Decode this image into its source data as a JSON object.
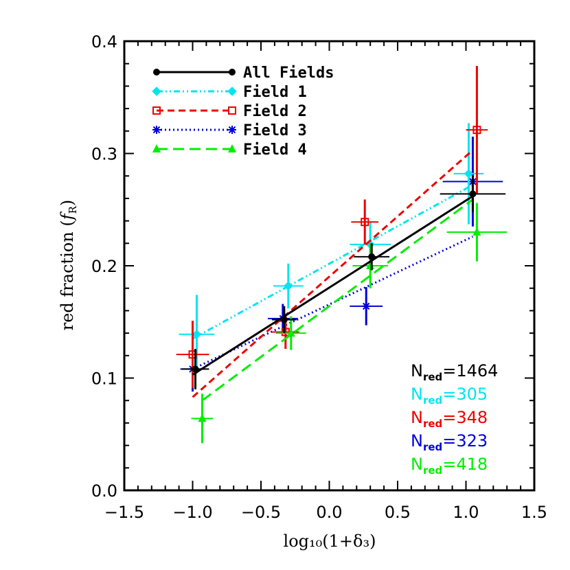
{
  "chart_data": {
    "type": "scatter",
    "xlabel": "log₁₀(1+δ₃)",
    "ylabel": "red fraction (",
    "ylabel_symbol": "f",
    "ylabel_subscript": "R",
    "ylabel_close": ")",
    "xlim": [
      -1.5,
      1.5
    ],
    "ylim": [
      0.0,
      0.4
    ],
    "xticks": [
      -1.5,
      -1.0,
      -0.5,
      0.0,
      0.5,
      1.0,
      1.5
    ],
    "xtick_labels": [
      "−1.5",
      "−1.0",
      "−0.5",
      "0.0",
      "0.5",
      "1.0",
      "1.5"
    ],
    "yticks": [
      0.0,
      0.1,
      0.2,
      0.3,
      0.4
    ],
    "ytick_labels": [
      "0.0",
      "0.1",
      "0.2",
      "0.3",
      "0.4"
    ],
    "grid": false,
    "legend_position": "top-left",
    "series": [
      {
        "name": "All Fields",
        "color": "#000000",
        "marker": "filled-circle",
        "linestyle": "solid",
        "points": [
          {
            "x": -0.98,
            "y": 0.108,
            "xerr": 0.1,
            "yerr": 0.018
          },
          {
            "x": -0.33,
            "y": 0.152,
            "xerr": 0.09,
            "yerr": 0.012
          },
          {
            "x": 0.31,
            "y": 0.208,
            "xerr": 0.13,
            "yerr": 0.012
          },
          {
            "x": 1.05,
            "y": 0.264,
            "xerr": 0.24,
            "yerr": 0.016
          }
        ],
        "fit": [
          [
            -1.0,
            0.103
          ],
          [
            1.05,
            0.262
          ]
        ]
      },
      {
        "name": "Field 1",
        "color": "#00e5ee",
        "marker": "diamond",
        "linestyle": "dash-dot-dot",
        "points": [
          {
            "x": -0.97,
            "y": 0.139,
            "xerr": 0.13,
            "yerr": 0.035
          },
          {
            "x": -0.3,
            "y": 0.182,
            "xerr": 0.11,
            "yerr": 0.02
          },
          {
            "x": 0.3,
            "y": 0.219,
            "xerr": 0.15,
            "yerr": 0.02
          },
          {
            "x": 1.02,
            "y": 0.282,
            "xerr": 0.11,
            "yerr": 0.045
          }
        ],
        "fit": [
          [
            -1.0,
            0.135
          ],
          [
            1.05,
            0.272
          ]
        ]
      },
      {
        "name": "Field 2",
        "color": "#ee0000",
        "marker": "open-square",
        "linestyle": "dashed",
        "points": [
          {
            "x": -1.0,
            "y": 0.121,
            "xerr": 0.12,
            "yerr": 0.03
          },
          {
            "x": -0.32,
            "y": 0.141,
            "xerr": 0.1,
            "yerr": 0.015
          },
          {
            "x": 0.26,
            "y": 0.239,
            "xerr": 0.1,
            "yerr": 0.02
          },
          {
            "x": 1.08,
            "y": 0.321,
            "xerr": 0.08,
            "yerr": 0.057
          }
        ],
        "fit": [
          [
            -1.0,
            0.083
          ],
          [
            1.05,
            0.303
          ]
        ]
      },
      {
        "name": "Field 3",
        "color": "#0000dd",
        "marker": "asterisk",
        "linestyle": "dotted",
        "points": [
          {
            "x": -1.0,
            "y": 0.108,
            "xerr": 0.09,
            "yerr": 0.02
          },
          {
            "x": -0.34,
            "y": 0.153,
            "xerr": 0.11,
            "yerr": 0.013
          },
          {
            "x": 0.27,
            "y": 0.164,
            "xerr": 0.12,
            "yerr": 0.017
          },
          {
            "x": 1.05,
            "y": 0.275,
            "xerr": 0.22,
            "yerr": 0.04
          }
        ],
        "fit": [
          [
            -1.0,
            0.108
          ],
          [
            1.05,
            0.226
          ]
        ]
      },
      {
        "name": "Field 4",
        "color": "#00ee00",
        "marker": "filled-triangle",
        "linestyle": "long-dashed",
        "points": [
          {
            "x": -0.93,
            "y": 0.064,
            "xerr": 0.08,
            "yerr": 0.022
          },
          {
            "x": -0.28,
            "y": 0.14,
            "xerr": 0.11,
            "yerr": 0.015
          },
          {
            "x": 0.3,
            "y": 0.2,
            "xerr": 0.13,
            "yerr": 0.02
          },
          {
            "x": 1.08,
            "y": 0.23,
            "xerr": 0.22,
            "yerr": 0.026
          }
        ],
        "fit": [
          [
            -0.93,
            0.08
          ],
          [
            1.05,
            0.259
          ]
        ]
      }
    ],
    "annotations": [
      {
        "label": "N",
        "sub": "red",
        "value": "=1464",
        "color": "#000000"
      },
      {
        "label": "N",
        "sub": "red",
        "value": "=305",
        "color": "#00e5ee"
      },
      {
        "label": "N",
        "sub": "red",
        "value": "=348",
        "color": "#ee0000"
      },
      {
        "label": "N",
        "sub": "red",
        "value": "=323",
        "color": "#0000dd"
      },
      {
        "label": "N",
        "sub": "red",
        "value": "=418",
        "color": "#00ee00"
      }
    ]
  }
}
